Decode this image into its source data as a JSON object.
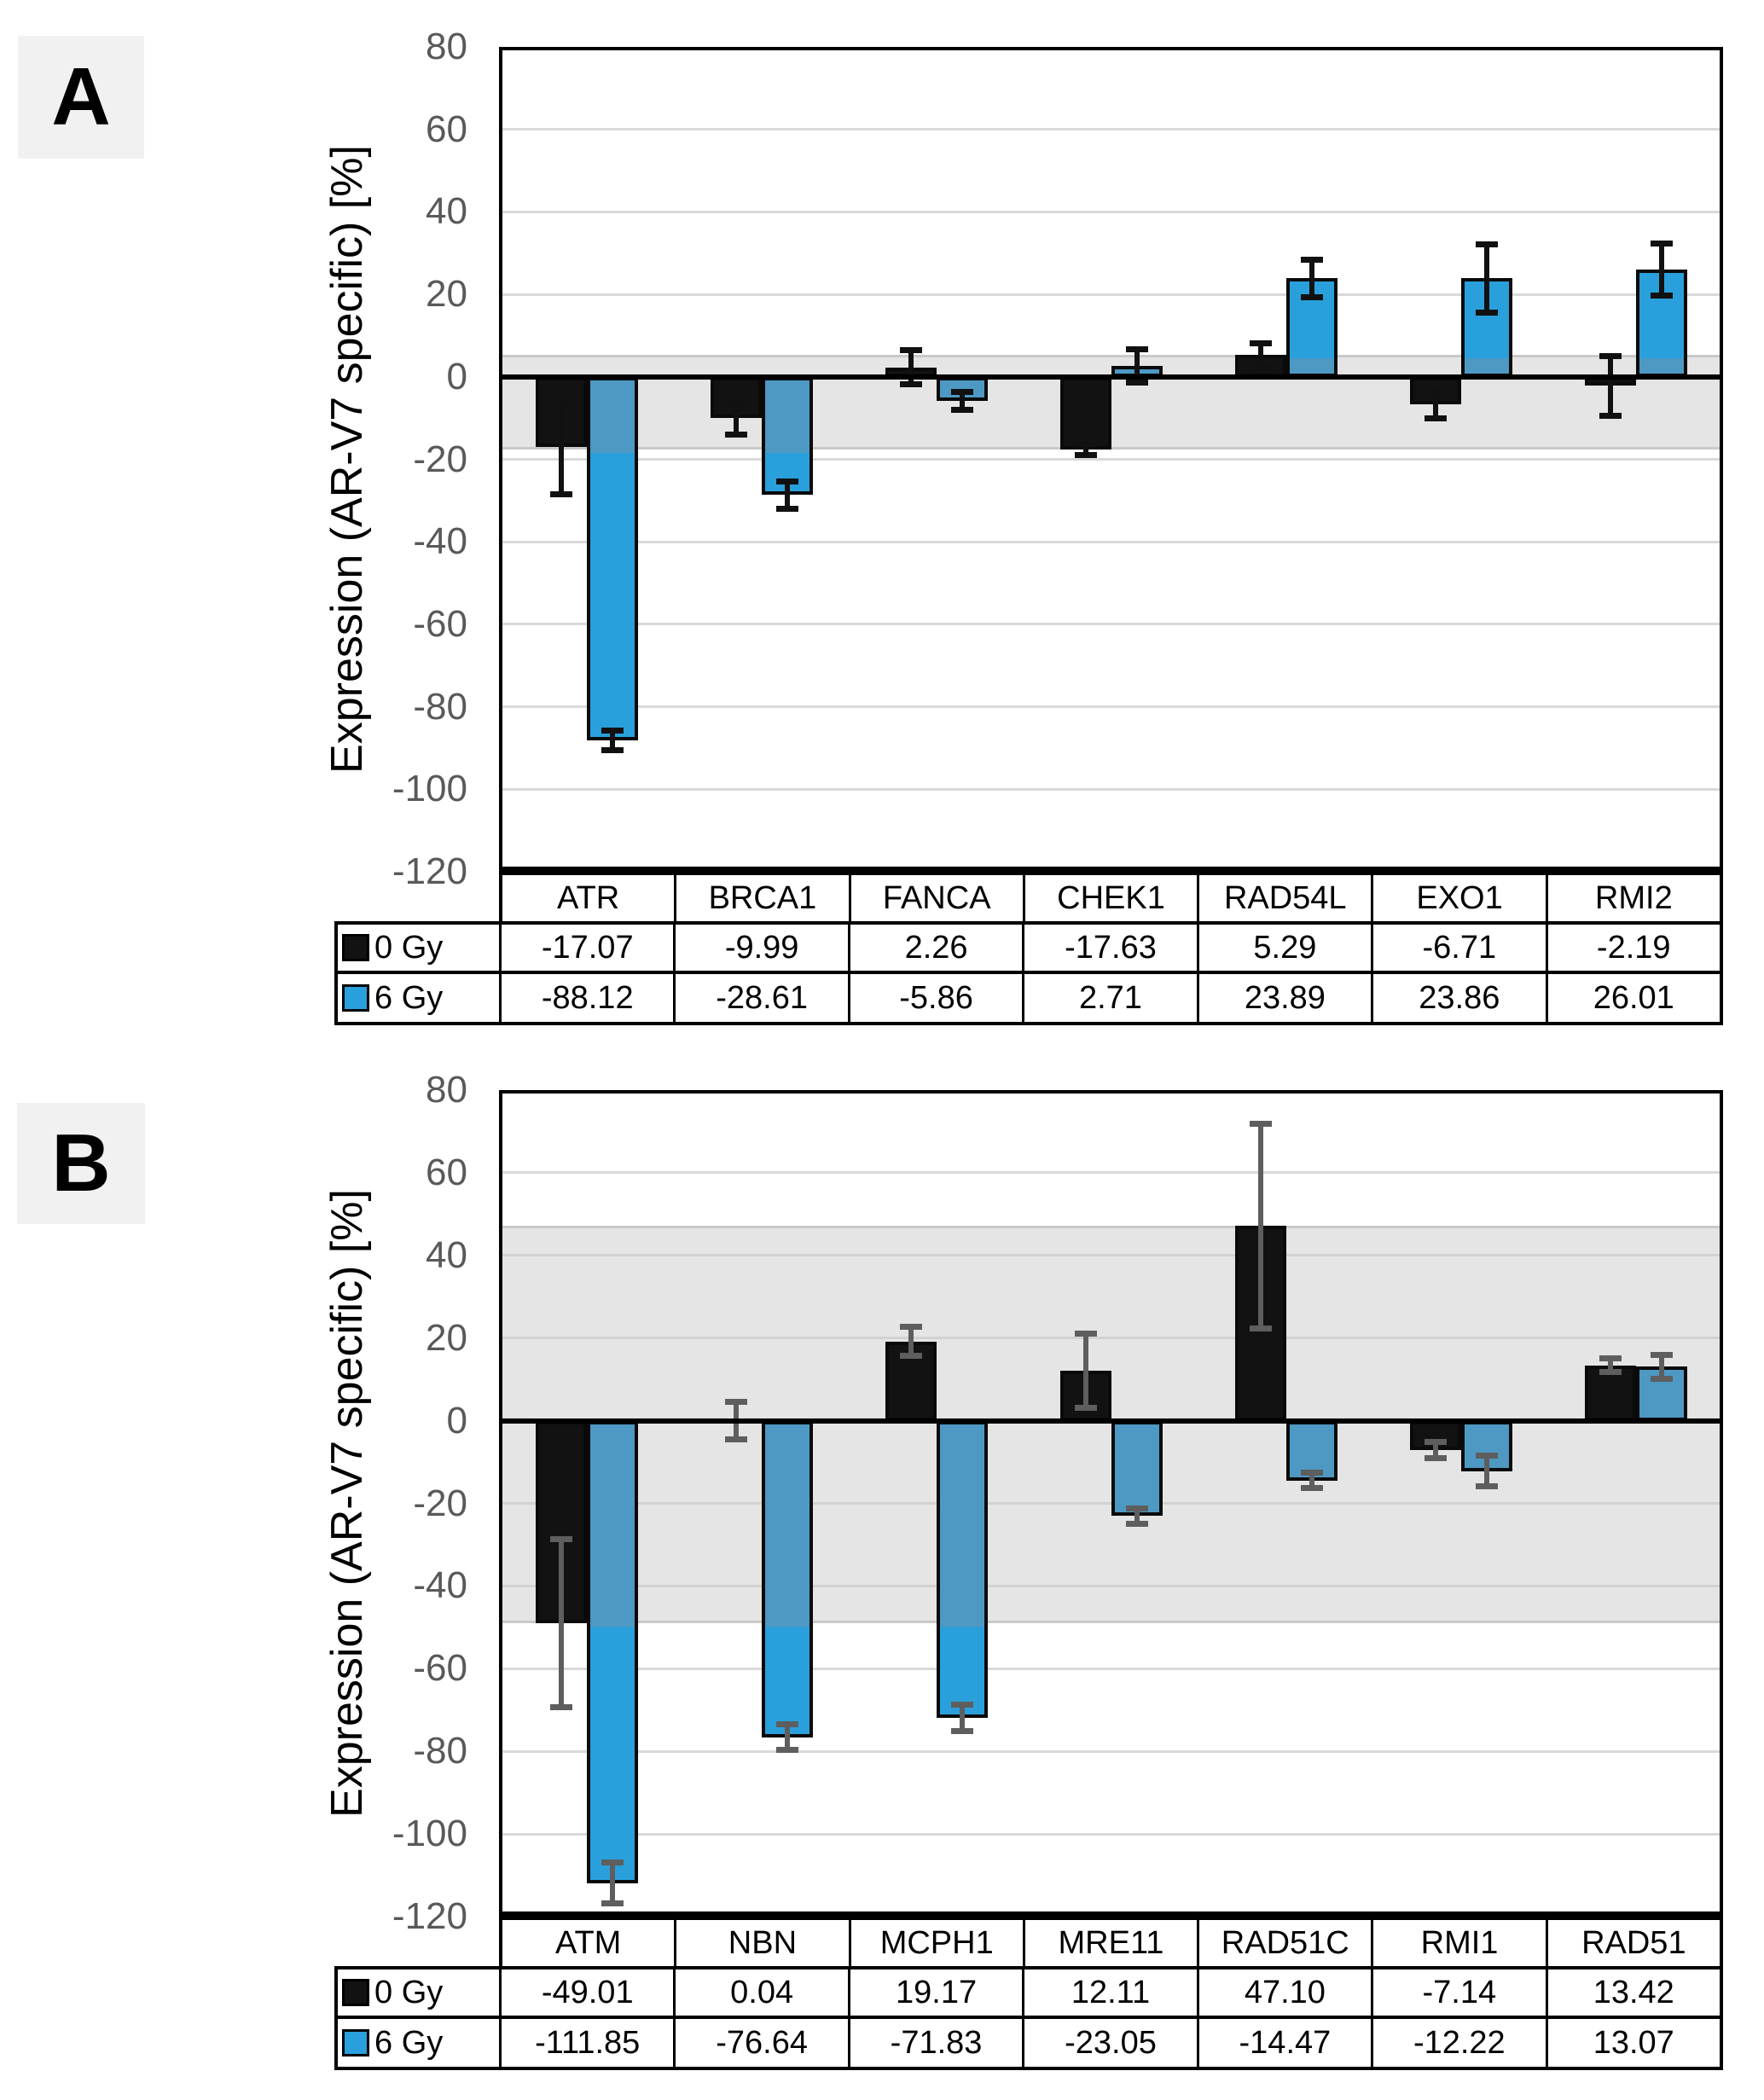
{
  "page": {
    "background": "#FFFFFF"
  },
  "colors": {
    "bar_black": "#121212",
    "bar_blue_bright": "#29A0DB",
    "bar_blue_muted": "#4D99C4",
    "bar_outline": "#0A0A0A",
    "gridline": "#D9D9D9",
    "tick_text": "#595959",
    "band_fill": "rgba(203,203,203,0.5)",
    "band_edge": "rgba(160,160,160,0.4)",
    "zero_line": "#000000",
    "panel_label_bg": "#F1F1F1"
  },
  "chart_data": [
    {
      "type": "bar",
      "panel_label": "A",
      "title": "",
      "xlabel": "",
      "ylabel": "Expression (AR-V7 specific) [%]",
      "ylim": [
        -120,
        80
      ],
      "yticks": [
        80,
        60,
        40,
        20,
        0,
        -20,
        -40,
        -60,
        -80,
        -100,
        -120
      ],
      "grid": true,
      "legend_position": "table-left",
      "categories": [
        "ATR",
        "BRCA1",
        "FANCA",
        "CHEK1",
        "RAD54L",
        "EXO1",
        "RMI2"
      ],
      "series": [
        {
          "name": "0 Gy",
          "color": "#121212",
          "values": [
            -17.07,
            -9.99,
            2.26,
            -17.63,
            5.29,
            -6.71,
            -2.19
          ],
          "errors": [
            11.1,
            3.7,
            3.8,
            1.1,
            2.6,
            3.0,
            7.0
          ]
        },
        {
          "name": "6 Gy",
          "color": "#29A0DB",
          "values": [
            -88.12,
            -28.61,
            -5.86,
            2.71,
            23.89,
            23.86,
            26.01
          ],
          "errors": [
            2.0,
            3.0,
            1.9,
            3.7,
            4.3,
            8.0,
            6.0
          ]
        }
      ],
      "reference_band": {
        "from": -17.63,
        "to": 5.29
      },
      "error_bar_color": "#111111"
    },
    {
      "type": "bar",
      "panel_label": "B",
      "title": "",
      "xlabel": "",
      "ylabel": "Expression (AR-V7 specific) [%]",
      "ylim": [
        -120,
        80
      ],
      "yticks": [
        80,
        60,
        40,
        20,
        0,
        -20,
        -40,
        -60,
        -80,
        -100,
        -120
      ],
      "grid": true,
      "legend_position": "table-left",
      "categories": [
        "ATM",
        "NBN",
        "MCPH1",
        "MRE11",
        "RAD51C",
        "RMI1",
        "RAD51"
      ],
      "series": [
        {
          "name": "0 Gy",
          "color": "#121212",
          "values": [
            -49.01,
            0.04,
            19.17,
            12.11,
            47.1,
            -7.14,
            13.42
          ],
          "errors": [
            20.0,
            4.2,
            3.2,
            8.7,
            24.5,
            1.6,
            1.3
          ]
        },
        {
          "name": "6 Gy",
          "color": "#29A0DB",
          "values": [
            -111.85,
            -76.64,
            -71.83,
            -23.05,
            -14.47,
            -12.22,
            13.07
          ],
          "errors": [
            4.7,
            2.8,
            2.9,
            1.5,
            1.5,
            3.4,
            2.6
          ]
        }
      ],
      "reference_band": {
        "from": -49.01,
        "to": 47.1
      },
      "error_bar_color": "#5E5E5E"
    }
  ]
}
